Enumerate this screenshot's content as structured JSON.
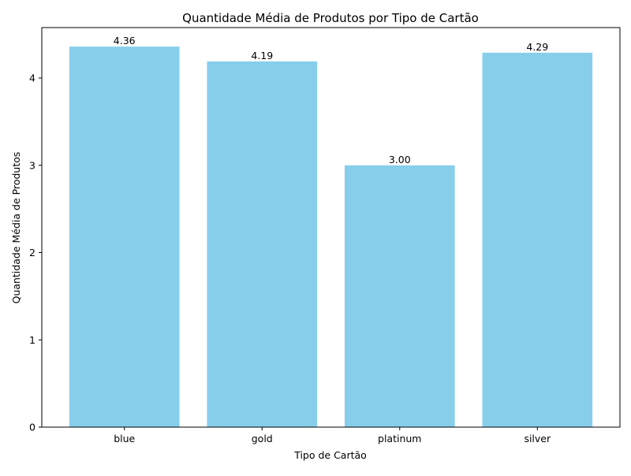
{
  "chart_data": {
    "type": "bar",
    "title": "Quantidade Média de Produtos por Tipo de Cartão",
    "xlabel": "Tipo de Cartão",
    "ylabel": "Quantidade Média de Produtos",
    "categories": [
      "blue",
      "gold",
      "platinum",
      "silver"
    ],
    "values": [
      4.36,
      4.19,
      3.0,
      4.29
    ],
    "value_labels": [
      "4.36",
      "4.19",
      "3.00",
      "4.29"
    ],
    "yticks": [
      0,
      1,
      2,
      3,
      4
    ],
    "ylim": [
      0,
      4.578
    ],
    "grid": false,
    "legend": "none",
    "bar_color": "#87CEEB"
  }
}
